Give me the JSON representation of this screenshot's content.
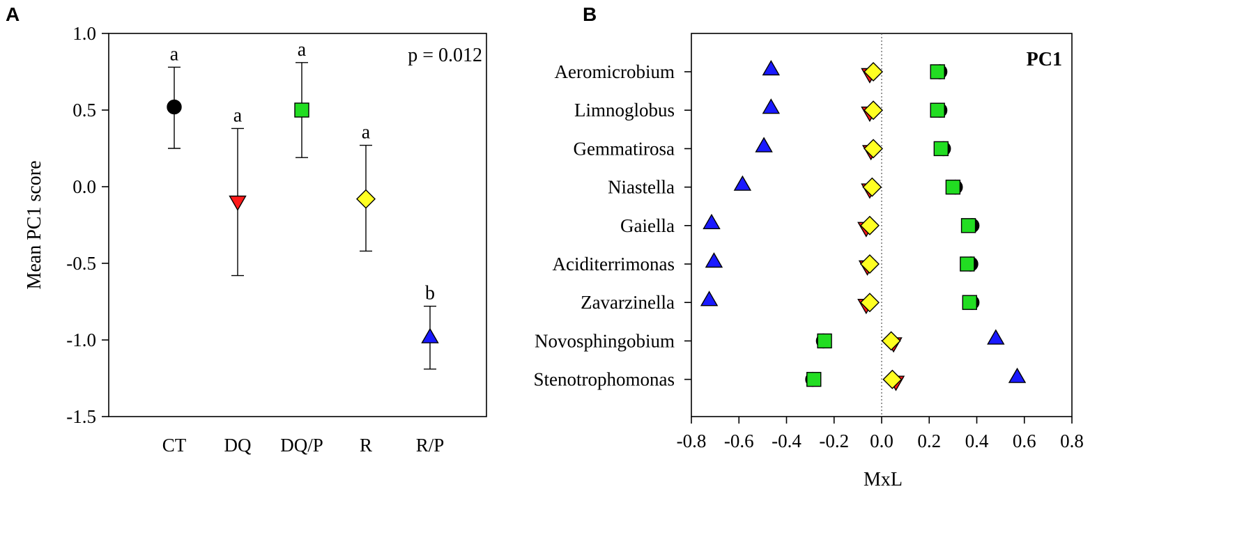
{
  "chart_data": [
    {
      "panel": "A",
      "type": "scatter",
      "ylabel": "Mean PC1 score",
      "xlabel": "",
      "ylim": [
        -1.5,
        1.0
      ],
      "yticks": [
        "1.0",
        "0.5",
        "0.0",
        "-0.5",
        "-1.0",
        "-1.5"
      ],
      "ytick_values": [
        1.0,
        0.5,
        0.0,
        -0.5,
        -1.0,
        -1.5
      ],
      "annotation": "p = 0.012",
      "categories": [
        "CT",
        "DQ",
        "DQ/P",
        "R",
        "R/P"
      ],
      "points": [
        {
          "category": "CT",
          "value": 0.52,
          "lower": 0.25,
          "upper": 0.78,
          "letter": "a",
          "marker": "circle",
          "color": "#000000"
        },
        {
          "category": "DQ",
          "value": -0.1,
          "lower": -0.58,
          "upper": 0.38,
          "letter": "a",
          "marker": "triangle-down",
          "color": "#ff1a1a"
        },
        {
          "category": "DQ/P",
          "value": 0.5,
          "lower": 0.19,
          "upper": 0.81,
          "letter": "a",
          "marker": "square",
          "color": "#22dd22"
        },
        {
          "category": "R",
          "value": -0.08,
          "lower": -0.42,
          "upper": 0.27,
          "letter": "a",
          "marker": "diamond",
          "color": "#ffff22"
        },
        {
          "category": "R/P",
          "value": -0.98,
          "lower": -1.19,
          "upper": -0.78,
          "letter": "b",
          "marker": "triangle-up",
          "color": "#1a1aff"
        }
      ]
    },
    {
      "panel": "B",
      "type": "scatter",
      "xlabel": "MxL",
      "label": "PC1",
      "xlim": [
        -0.8,
        0.8
      ],
      "xticks": [
        "-0.8",
        "-0.6",
        "-0.4",
        "-0.2",
        "0.0",
        "0.2",
        "0.4",
        "0.6",
        "0.8"
      ],
      "xtick_values": [
        -0.8,
        -0.6,
        -0.4,
        -0.2,
        0.0,
        0.2,
        0.4,
        0.6,
        0.8
      ],
      "reference_line": 0.0,
      "categories": [
        "Aeromicrobium",
        "Limnoglobus",
        "Gemmatirosa",
        "Niastella",
        "Gaiella",
        "Aciditerrimonas",
        "Zavarzinella",
        "Novosphingobium",
        "Stenotrophomonas"
      ],
      "series": [
        {
          "name": "CT",
          "marker": "circle",
          "color": "#000000",
          "values": [
            0.245,
            0.245,
            0.26,
            0.31,
            0.38,
            0.375,
            0.38,
            -0.245,
            -0.29
          ]
        },
        {
          "name": "DQ",
          "marker": "triangle-down",
          "color": "#ff1a1a",
          "values": [
            -0.05,
            -0.05,
            -0.045,
            -0.05,
            -0.065,
            -0.06,
            -0.065,
            0.05,
            0.06
          ]
        },
        {
          "name": "DQ/P",
          "marker": "square",
          "color": "#22dd22",
          "values": [
            0.235,
            0.235,
            0.25,
            0.3,
            0.365,
            0.36,
            0.37,
            -0.24,
            -0.285
          ]
        },
        {
          "name": "R",
          "marker": "diamond",
          "color": "#ffff22",
          "values": [
            -0.035,
            -0.035,
            -0.035,
            -0.04,
            -0.05,
            -0.05,
            -0.05,
            0.04,
            0.045
          ]
        },
        {
          "name": "R/P",
          "marker": "triangle-up",
          "color": "#1a1aff",
          "values": [
            -0.465,
            -0.465,
            -0.495,
            -0.585,
            -0.715,
            -0.705,
            -0.725,
            0.48,
            0.57
          ]
        }
      ]
    }
  ],
  "panel_labels": {
    "a": "A",
    "b": "B"
  }
}
